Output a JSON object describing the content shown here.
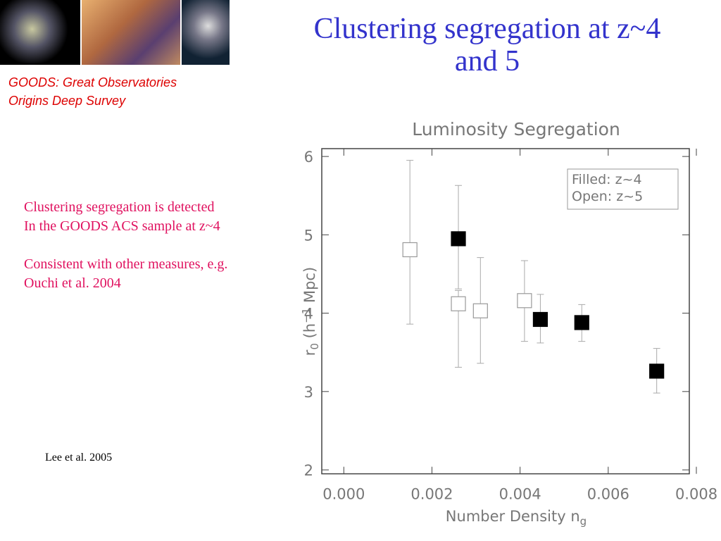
{
  "title_lines": [
    "Clustering segregation at z~4",
    "and 5"
  ],
  "logo_caption": [
    "GOODS: Great Observatories",
    "Origins Deep Survey"
  ],
  "body": [
    [
      "Clustering segregation is detected",
      "In the GOODS ACS sample at z~4"
    ],
    [
      "Consistent with other measures, e.g.",
      "Ouchi et al. 2004"
    ]
  ],
  "citation": "Lee et al. 2005",
  "chart_data": {
    "type": "scatter",
    "title": "Luminosity Segregation",
    "x_label": [
      "Number Density n",
      "g"
    ],
    "y_label": [
      "r",
      "0",
      " (h",
      "−1",
      " Mpc)"
    ],
    "xlim": [
      -0.0005,
      0.008
    ],
    "xticks": [
      {
        "value": 0,
        "label": "0.000"
      },
      {
        "value": 0.002,
        "label": "0.002"
      },
      {
        "value": 0.004,
        "label": "0.004"
      },
      {
        "value": 0.006,
        "label": "0.006"
      },
      {
        "value": 0.008,
        "label": "0.008"
      }
    ],
    "ylim": [
      1.95,
      6.1
    ],
    "yticks": [
      2,
      3,
      4,
      5,
      6
    ],
    "series": [
      {
        "name": "Filled: z~4",
        "color": "#000000",
        "filled": true,
        "x": [
          0.0026,
          0.00446,
          0.0054,
          0.0071
        ],
        "values": [
          4.95,
          3.92,
          3.88,
          3.26
        ],
        "y_lower": [
          4.31,
          3.62,
          3.64,
          2.98
        ],
        "y_upper": [
          5.63,
          4.24,
          4.11,
          3.55
        ]
      },
      {
        "name": "Open: z~5",
        "color": "#999999",
        "filled": false,
        "x": [
          0.0015,
          0.0026,
          0.0031,
          0.0041
        ],
        "values": [
          4.81,
          4.12,
          4.03,
          4.16
        ],
        "y_lower": [
          3.86,
          3.31,
          3.36,
          3.64
        ],
        "y_upper": [
          5.95,
          4.29,
          4.71,
          4.67
        ]
      }
    ]
  }
}
